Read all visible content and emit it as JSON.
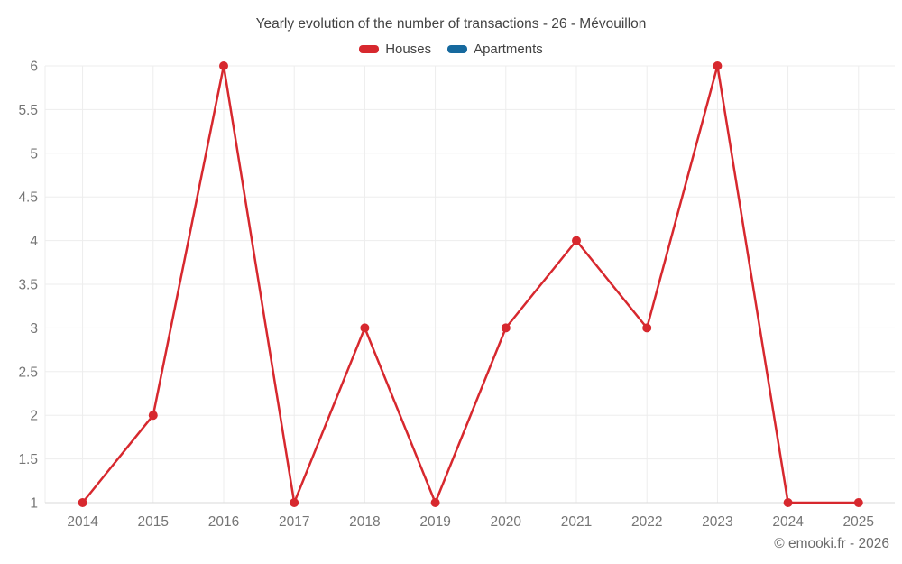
{
  "title": "Yearly evolution of the number of transactions - 26 - Mévouillon",
  "legend": {
    "items": [
      {
        "label": "Houses",
        "color": "#d7282e"
      },
      {
        "label": "Apartments",
        "color": "#16699e"
      }
    ]
  },
  "footer": "© emooki.fr - 2026",
  "colors": {
    "grid": "#ededed",
    "axis": "#d9d9d9",
    "tick_text": "#757575",
    "title_text": "#424242",
    "footer_text": "#6b6b6b",
    "houses": "#d7282e",
    "apartments": "#16699e"
  },
  "chart_data": {
    "type": "line",
    "title": "Yearly evolution of the number of transactions - 26 - Mévouillon",
    "x": [
      2014,
      2015,
      2016,
      2017,
      2018,
      2019,
      2020,
      2021,
      2022,
      2023,
      2024,
      2025
    ],
    "series": [
      {
        "name": "Houses",
        "color": "#d7282e",
        "values": [
          1,
          2,
          6,
          1,
          3,
          1,
          3,
          4,
          3,
          6,
          1,
          1
        ]
      },
      {
        "name": "Apartments",
        "color": "#16699e",
        "values": []
      }
    ],
    "xlabel": "",
    "ylabel": "",
    "ylim": [
      1,
      6
    ],
    "y_ticks": [
      1,
      1.5,
      2,
      2.5,
      3,
      3.5,
      4,
      4.5,
      5,
      5.5,
      6
    ],
    "grid": true,
    "legend_position": "top",
    "marker": "circle"
  }
}
